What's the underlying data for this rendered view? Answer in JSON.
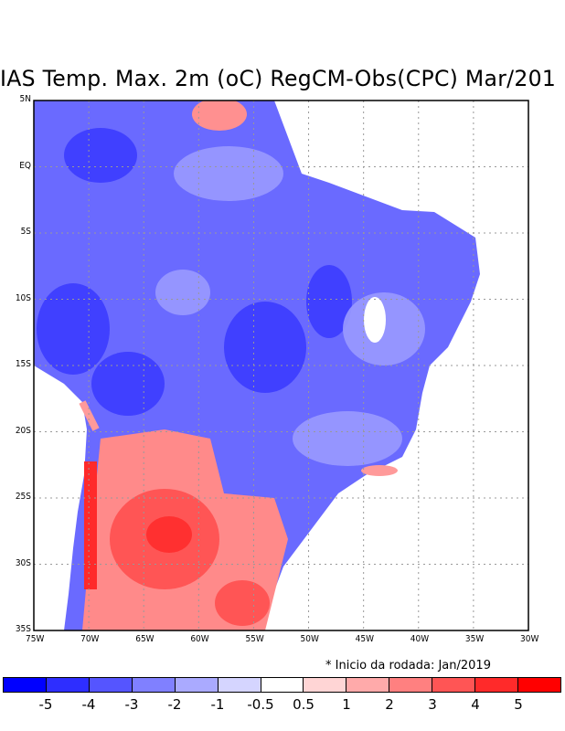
{
  "title": "IAS Temp. Max. 2m (oC) RegCM-Obs(CPC) Mar/201",
  "lat_labels": [
    "5N",
    "EQ",
    "5S",
    "10S",
    "15S",
    "20S",
    "25S",
    "30S",
    "35S"
  ],
  "lon_labels": [
    "75W",
    "70W",
    "65W",
    "60W",
    "55W",
    "50W",
    "45W",
    "40W",
    "35W",
    "30W"
  ],
  "footnote": "* Inicio da rodada: Jan/2019",
  "colorbar": {
    "labels": [
      "-5",
      "-4",
      "-3",
      "-2",
      "-1",
      "-0.5",
      "0.5",
      "1",
      "2",
      "3",
      "4",
      "5"
    ],
    "colors": [
      "#0000ff",
      "#2e2eff",
      "#5555ff",
      "#8080ff",
      "#aaaaff",
      "#d5d5ff",
      "#ffffff",
      "#ffd5d5",
      "#ffaaaa",
      "#ff8080",
      "#ff5555",
      "#ff2a2a",
      "#ff0000"
    ]
  }
}
